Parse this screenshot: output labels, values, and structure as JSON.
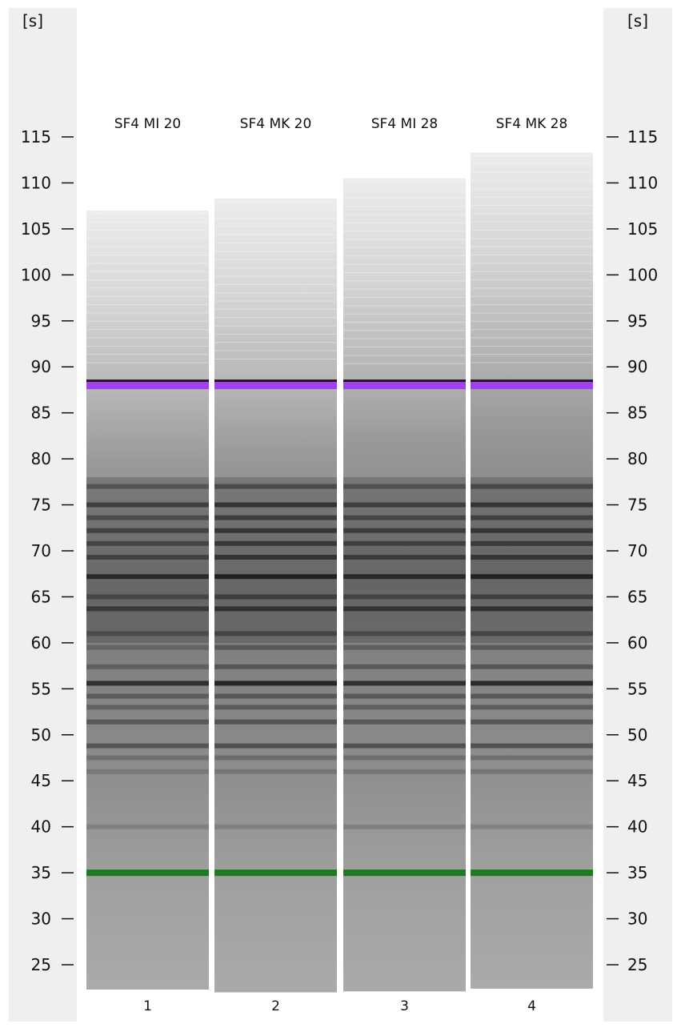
{
  "chart_data": {
    "type": "gel-electropherogram",
    "y_unit_label": "[s]",
    "ylim": [
      21,
      118
    ],
    "y_ticks": [
      25,
      30,
      35,
      40,
      45,
      50,
      55,
      60,
      65,
      70,
      75,
      80,
      85,
      90,
      95,
      100,
      105,
      110,
      115
    ],
    "lanes": [
      {
        "label": "SF4 MI 20",
        "number": "1",
        "top_s": 107.0,
        "bottom_s": 22.3,
        "upper_marker_s": 88.1,
        "lower_marker_s": 35.0,
        "bands": [
          {
            "s": 40.0,
            "intensity": 0.18
          },
          {
            "s": 46.0,
            "intensity": 0.2
          },
          {
            "s": 47.5,
            "intensity": 0.25
          },
          {
            "s": 48.8,
            "intensity": 0.5
          },
          {
            "s": 51.4,
            "intensity": 0.45
          },
          {
            "s": 53.0,
            "intensity": 0.35
          },
          {
            "s": 54.2,
            "intensity": 0.4
          },
          {
            "s": 55.6,
            "intensity": 0.85
          },
          {
            "s": 57.4,
            "intensity": 0.35
          },
          {
            "s": 59.5,
            "intensity": 0.3
          },
          {
            "s": 61.0,
            "intensity": 0.35
          },
          {
            "s": 63.7,
            "intensity": 0.6
          },
          {
            "s": 65.0,
            "intensity": 0.4
          },
          {
            "s": 67.2,
            "intensity": 0.8
          },
          {
            "s": 69.3,
            "intensity": 0.55
          },
          {
            "s": 70.8,
            "intensity": 0.5
          },
          {
            "s": 72.2,
            "intensity": 0.55
          },
          {
            "s": 73.6,
            "intensity": 0.45
          },
          {
            "s": 75.0,
            "intensity": 0.6
          },
          {
            "s": 77.0,
            "intensity": 0.4
          }
        ]
      },
      {
        "label": "SF4 MK 20",
        "number": "2",
        "top_s": 108.3,
        "bottom_s": 22.0,
        "upper_marker_s": 88.1,
        "lower_marker_s": 35.0,
        "bands": [
          {
            "s": 40.0,
            "intensity": 0.2
          },
          {
            "s": 46.0,
            "intensity": 0.22
          },
          {
            "s": 47.5,
            "intensity": 0.28
          },
          {
            "s": 48.8,
            "intensity": 0.55
          },
          {
            "s": 51.4,
            "intensity": 0.5
          },
          {
            "s": 53.0,
            "intensity": 0.4
          },
          {
            "s": 54.2,
            "intensity": 0.45
          },
          {
            "s": 55.6,
            "intensity": 0.95
          },
          {
            "s": 57.4,
            "intensity": 0.45
          },
          {
            "s": 59.5,
            "intensity": 0.4
          },
          {
            "s": 61.0,
            "intensity": 0.45
          },
          {
            "s": 63.7,
            "intensity": 0.7
          },
          {
            "s": 65.0,
            "intensity": 0.5
          },
          {
            "s": 67.2,
            "intensity": 0.9
          },
          {
            "s": 69.3,
            "intensity": 0.7
          },
          {
            "s": 70.8,
            "intensity": 0.65
          },
          {
            "s": 72.2,
            "intensity": 0.7
          },
          {
            "s": 73.6,
            "intensity": 0.6
          },
          {
            "s": 75.0,
            "intensity": 0.75
          },
          {
            "s": 77.0,
            "intensity": 0.5
          }
        ]
      },
      {
        "label": "SF4 MI 28",
        "number": "3",
        "top_s": 110.5,
        "bottom_s": 22.1,
        "upper_marker_s": 88.1,
        "lower_marker_s": 35.0,
        "bands": [
          {
            "s": 40.0,
            "intensity": 0.2
          },
          {
            "s": 46.0,
            "intensity": 0.22
          },
          {
            "s": 47.5,
            "intensity": 0.28
          },
          {
            "s": 48.8,
            "intensity": 0.55
          },
          {
            "s": 51.4,
            "intensity": 0.45
          },
          {
            "s": 53.0,
            "intensity": 0.38
          },
          {
            "s": 54.2,
            "intensity": 0.42
          },
          {
            "s": 55.6,
            "intensity": 0.85
          },
          {
            "s": 57.4,
            "intensity": 0.4
          },
          {
            "s": 59.5,
            "intensity": 0.35
          },
          {
            "s": 61.0,
            "intensity": 0.4
          },
          {
            "s": 63.7,
            "intensity": 0.65
          },
          {
            "s": 65.0,
            "intensity": 0.45
          },
          {
            "s": 67.2,
            "intensity": 0.8
          },
          {
            "s": 69.3,
            "intensity": 0.6
          },
          {
            "s": 70.8,
            "intensity": 0.55
          },
          {
            "s": 72.2,
            "intensity": 0.6
          },
          {
            "s": 73.6,
            "intensity": 0.5
          },
          {
            "s": 75.0,
            "intensity": 0.6
          },
          {
            "s": 77.0,
            "intensity": 0.42
          }
        ]
      },
      {
        "label": "SF4 MK 28",
        "number": "4",
        "top_s": 113.3,
        "bottom_s": 22.4,
        "upper_marker_s": 88.1,
        "lower_marker_s": 35.0,
        "bands": [
          {
            "s": 40.0,
            "intensity": 0.2
          },
          {
            "s": 46.0,
            "intensity": 0.22
          },
          {
            "s": 47.5,
            "intensity": 0.28
          },
          {
            "s": 48.8,
            "intensity": 0.55
          },
          {
            "s": 51.4,
            "intensity": 0.48
          },
          {
            "s": 53.0,
            "intensity": 0.4
          },
          {
            "s": 54.2,
            "intensity": 0.45
          },
          {
            "s": 55.6,
            "intensity": 0.9
          },
          {
            "s": 57.4,
            "intensity": 0.45
          },
          {
            "s": 59.5,
            "intensity": 0.4
          },
          {
            "s": 61.0,
            "intensity": 0.45
          },
          {
            "s": 63.7,
            "intensity": 0.7
          },
          {
            "s": 65.0,
            "intensity": 0.5
          },
          {
            "s": 67.2,
            "intensity": 0.88
          },
          {
            "s": 69.3,
            "intensity": 0.65
          },
          {
            "s": 70.8,
            "intensity": 0.6
          },
          {
            "s": 72.2,
            "intensity": 0.65
          },
          {
            "s": 73.6,
            "intensity": 0.55
          },
          {
            "s": 75.0,
            "intensity": 0.7
          },
          {
            "s": 77.0,
            "intensity": 0.5
          }
        ]
      }
    ],
    "colors": {
      "upper_marker": "#a040ee",
      "lower_marker": "#1f7a1f",
      "background_lane": "#a8a8a8",
      "axis_panel": "#efefef"
    }
  }
}
